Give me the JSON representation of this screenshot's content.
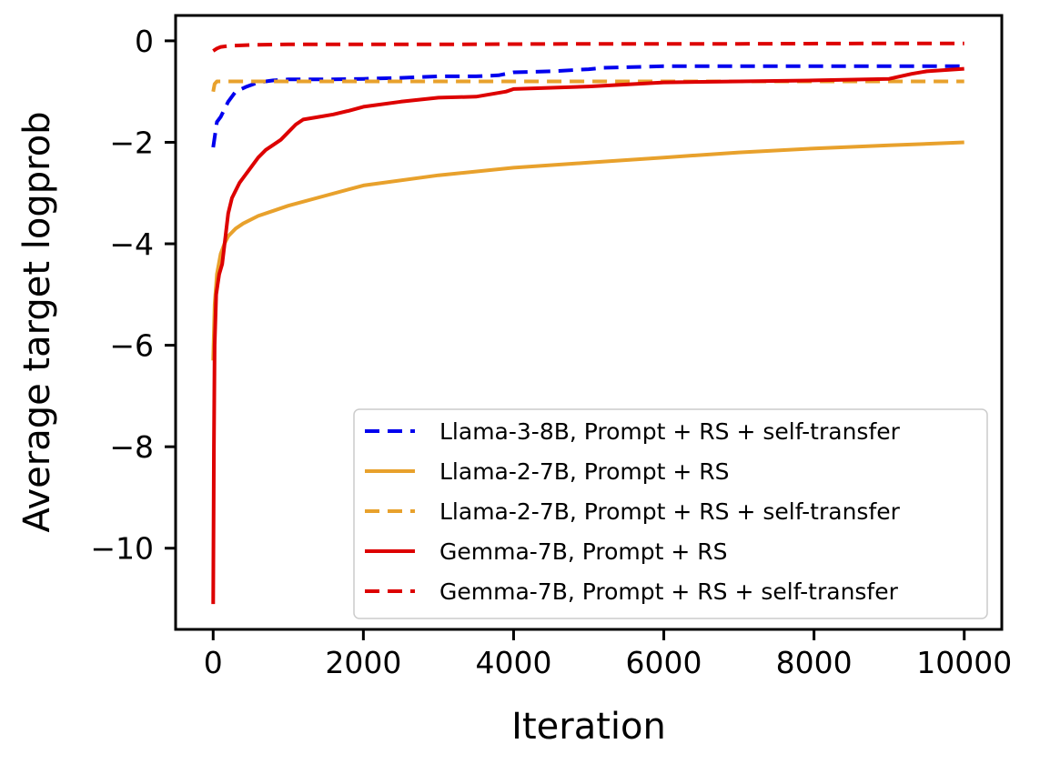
{
  "chart_data": {
    "type": "line",
    "xlabel": "Iteration",
    "ylabel": "Average target logprob",
    "xlim": [
      -500,
      10500
    ],
    "ylim": [
      -11.6,
      0.5
    ],
    "xticks": [
      0,
      2000,
      4000,
      6000,
      8000,
      10000
    ],
    "xtick_labels": [
      "0",
      "2000",
      "4000",
      "6000",
      "8000",
      "10000"
    ],
    "yticks": [
      0,
      -2,
      -4,
      -6,
      -8,
      -10
    ],
    "ytick_labels": [
      "0",
      "−2",
      "−4",
      "−6",
      "−8",
      "−10"
    ],
    "grid": false,
    "legend_position": "lower-right",
    "series": [
      {
        "name": "Llama-3-8B, Prompt + RS + self-transfer",
        "color": "#0000ee",
        "style": "dashed",
        "x": [
          0,
          50,
          100,
          200,
          300,
          450,
          600,
          800,
          1000,
          1500,
          2000,
          2500,
          3000,
          3500,
          3800,
          4000,
          4500,
          5000,
          5200,
          6000,
          7000,
          8000,
          9000,
          10000
        ],
        "y": [
          -2.1,
          -1.6,
          -1.5,
          -1.2,
          -1.0,
          -0.9,
          -0.82,
          -0.78,
          -0.76,
          -0.76,
          -0.75,
          -0.73,
          -0.7,
          -0.7,
          -0.68,
          -0.62,
          -0.6,
          -0.56,
          -0.53,
          -0.5,
          -0.5,
          -0.5,
          -0.5,
          -0.5
        ]
      },
      {
        "name": "Llama-2-7B, Prompt + RS",
        "color": "#e8a12c",
        "style": "solid",
        "x": [
          0,
          20,
          50,
          100,
          150,
          200,
          300,
          400,
          600,
          800,
          1000,
          1500,
          2000,
          3000,
          4000,
          5000,
          6000,
          7000,
          8000,
          9000,
          10000
        ],
        "y": [
          -6.3,
          -5.2,
          -4.6,
          -4.2,
          -4.0,
          -3.85,
          -3.7,
          -3.6,
          -3.45,
          -3.35,
          -3.25,
          -3.05,
          -2.85,
          -2.65,
          -2.5,
          -2.4,
          -2.3,
          -2.2,
          -2.12,
          -2.06,
          -2.0
        ]
      },
      {
        "name": "Llama-2-7B, Prompt + RS + self-transfer",
        "color": "#e8a12c",
        "style": "dashed",
        "x": [
          0,
          20,
          50,
          100,
          300,
          1000,
          3000,
          5000,
          7000,
          9000,
          10000
        ],
        "y": [
          -1.0,
          -0.85,
          -0.8,
          -0.8,
          -0.8,
          -0.8,
          -0.8,
          -0.8,
          -0.8,
          -0.8,
          -0.8
        ]
      },
      {
        "name": "Gemma-7B, Prompt + RS",
        "color": "#dd0000",
        "style": "solid",
        "x": [
          0,
          10,
          20,
          40,
          60,
          80,
          120,
          160,
          200,
          250,
          300,
          350,
          400,
          500,
          600,
          700,
          800,
          900,
          1000,
          1100,
          1200,
          1400,
          1600,
          1800,
          2000,
          2500,
          3000,
          3500,
          3900,
          4000,
          5000,
          6000,
          7000,
          8000,
          9000,
          9300,
          9500,
          10000
        ],
        "y": [
          -11.1,
          -8.0,
          -6.0,
          -5.0,
          -4.8,
          -4.6,
          -4.4,
          -3.9,
          -3.4,
          -3.1,
          -2.95,
          -2.8,
          -2.7,
          -2.5,
          -2.3,
          -2.15,
          -2.05,
          -1.95,
          -1.8,
          -1.65,
          -1.55,
          -1.5,
          -1.45,
          -1.38,
          -1.3,
          -1.2,
          -1.12,
          -1.1,
          -1.0,
          -0.95,
          -0.9,
          -0.82,
          -0.8,
          -0.78,
          -0.75,
          -0.65,
          -0.6,
          -0.55
        ]
      },
      {
        "name": "Gemma-7B, Prompt + RS + self-transfer",
        "color": "#dd0000",
        "style": "dashed",
        "x": [
          0,
          50,
          100,
          200,
          500,
          1000,
          3000,
          5000,
          7000,
          9000,
          10000
        ],
        "y": [
          -0.2,
          -0.15,
          -0.12,
          -0.1,
          -0.08,
          -0.07,
          -0.07,
          -0.06,
          -0.06,
          -0.05,
          -0.05
        ]
      }
    ]
  }
}
